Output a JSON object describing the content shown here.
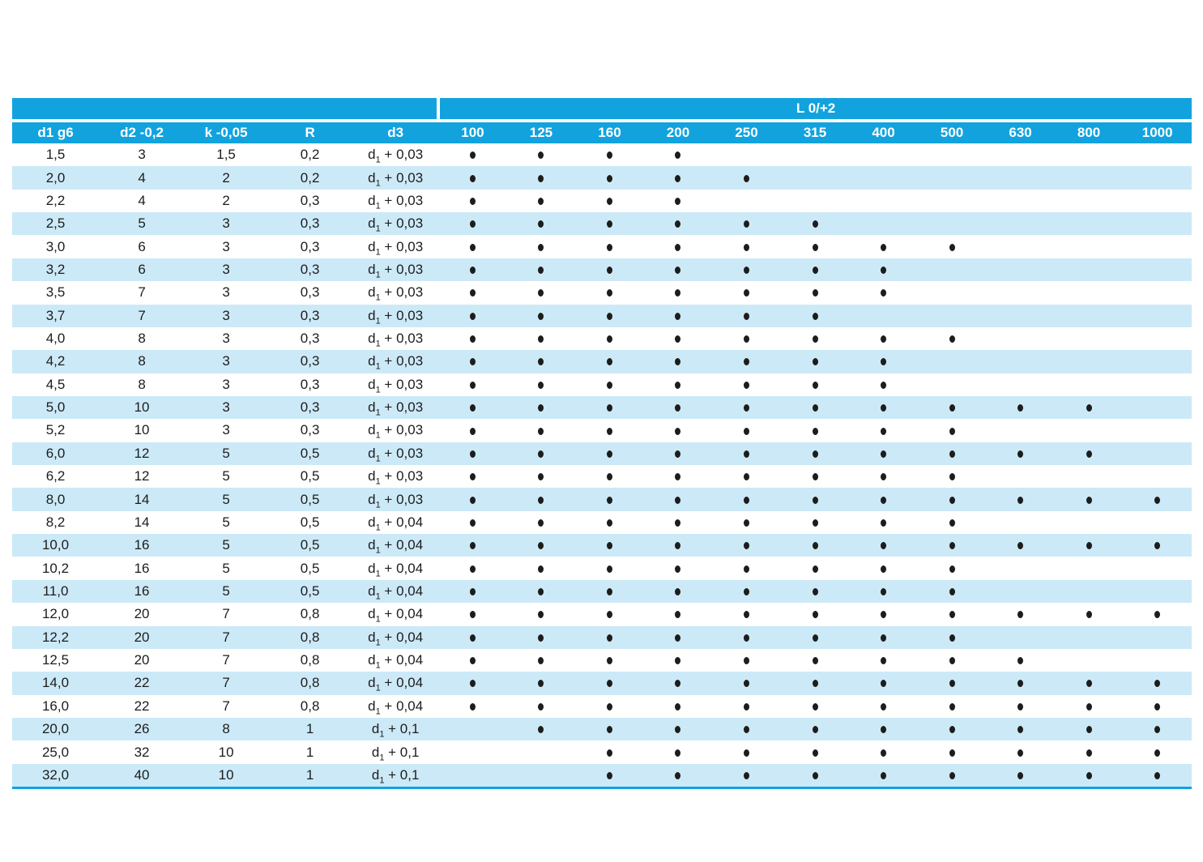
{
  "colors": {
    "header_cyan": "#12A3DE",
    "stripe_blue": "#CCE9F8",
    "text_dark": "#1D1D1B",
    "header_text": "#FFFFFF"
  },
  "table": {
    "group_header": "L 0/+2",
    "left_headers": [
      "d1 g6",
      "d2 -0,2",
      "k -0,05",
      "R",
      "d3"
    ],
    "length_headers": [
      "100",
      "125",
      "160",
      "200",
      "250",
      "315",
      "400",
      "500",
      "630",
      "800",
      "1000"
    ],
    "rows": [
      {
        "d1": "1,5",
        "d2": "3",
        "k": "1,5",
        "r": "0,2",
        "d3": "d1 + 0,03",
        "dots": [
          1,
          1,
          1,
          1,
          0,
          0,
          0,
          0,
          0,
          0,
          0
        ]
      },
      {
        "d1": "2,0",
        "d2": "4",
        "k": "2",
        "r": "0,2",
        "d3": "d1 + 0,03",
        "dots": [
          1,
          1,
          1,
          1,
          1,
          0,
          0,
          0,
          0,
          0,
          0
        ]
      },
      {
        "d1": "2,2",
        "d2": "4",
        "k": "2",
        "r": "0,3",
        "d3": "d1 + 0,03",
        "dots": [
          1,
          1,
          1,
          1,
          0,
          0,
          0,
          0,
          0,
          0,
          0
        ]
      },
      {
        "d1": "2,5",
        "d2": "5",
        "k": "3",
        "r": "0,3",
        "d3": "d1 + 0,03",
        "dots": [
          1,
          1,
          1,
          1,
          1,
          1,
          0,
          0,
          0,
          0,
          0
        ]
      },
      {
        "d1": "3,0",
        "d2": "6",
        "k": "3",
        "r": "0,3",
        "d3": "d1 + 0,03",
        "dots": [
          1,
          1,
          1,
          1,
          1,
          1,
          1,
          1,
          0,
          0,
          0
        ]
      },
      {
        "d1": "3,2",
        "d2": "6",
        "k": "3",
        "r": "0,3",
        "d3": "d1 + 0,03",
        "dots": [
          1,
          1,
          1,
          1,
          1,
          1,
          1,
          0,
          0,
          0,
          0
        ]
      },
      {
        "d1": "3,5",
        "d2": "7",
        "k": "3",
        "r": "0,3",
        "d3": "d1 + 0,03",
        "dots": [
          1,
          1,
          1,
          1,
          1,
          1,
          1,
          0,
          0,
          0,
          0
        ]
      },
      {
        "d1": "3,7",
        "d2": "7",
        "k": "3",
        "r": "0,3",
        "d3": "d1 + 0,03",
        "dots": [
          1,
          1,
          1,
          1,
          1,
          1,
          0,
          0,
          0,
          0,
          0
        ]
      },
      {
        "d1": "4,0",
        "d2": "8",
        "k": "3",
        "r": "0,3",
        "d3": "d1 + 0,03",
        "dots": [
          1,
          1,
          1,
          1,
          1,
          1,
          1,
          1,
          0,
          0,
          0
        ]
      },
      {
        "d1": "4,2",
        "d2": "8",
        "k": "3",
        "r": "0,3",
        "d3": "d1 + 0,03",
        "dots": [
          1,
          1,
          1,
          1,
          1,
          1,
          1,
          0,
          0,
          0,
          0
        ]
      },
      {
        "d1": "4,5",
        "d2": "8",
        "k": "3",
        "r": "0,3",
        "d3": "d1 + 0,03",
        "dots": [
          1,
          1,
          1,
          1,
          1,
          1,
          1,
          0,
          0,
          0,
          0
        ]
      },
      {
        "d1": "5,0",
        "d2": "10",
        "k": "3",
        "r": "0,3",
        "d3": "d1 + 0,03",
        "dots": [
          1,
          1,
          1,
          1,
          1,
          1,
          1,
          1,
          1,
          1,
          0
        ]
      },
      {
        "d1": "5,2",
        "d2": "10",
        "k": "3",
        "r": "0,3",
        "d3": "d1 + 0,03",
        "dots": [
          1,
          1,
          1,
          1,
          1,
          1,
          1,
          1,
          0,
          0,
          0
        ]
      },
      {
        "d1": "6,0",
        "d2": "12",
        "k": "5",
        "r": "0,5",
        "d3": "d1 + 0,03",
        "dots": [
          1,
          1,
          1,
          1,
          1,
          1,
          1,
          1,
          1,
          1,
          0
        ]
      },
      {
        "d1": "6,2",
        "d2": "12",
        "k": "5",
        "r": "0,5",
        "d3": "d1 + 0,03",
        "dots": [
          1,
          1,
          1,
          1,
          1,
          1,
          1,
          1,
          0,
          0,
          0
        ]
      },
      {
        "d1": "8,0",
        "d2": "14",
        "k": "5",
        "r": "0,5",
        "d3": "d1 + 0,03",
        "dots": [
          1,
          1,
          1,
          1,
          1,
          1,
          1,
          1,
          1,
          1,
          1
        ]
      },
      {
        "d1": "8,2",
        "d2": "14",
        "k": "5",
        "r": "0,5",
        "d3": "d1 + 0,04",
        "dots": [
          1,
          1,
          1,
          1,
          1,
          1,
          1,
          1,
          0,
          0,
          0
        ]
      },
      {
        "d1": "10,0",
        "d2": "16",
        "k": "5",
        "r": "0,5",
        "d3": "d1 + 0,04",
        "dots": [
          1,
          1,
          1,
          1,
          1,
          1,
          1,
          1,
          1,
          1,
          1
        ]
      },
      {
        "d1": "10,2",
        "d2": "16",
        "k": "5",
        "r": "0,5",
        "d3": "d1 + 0,04",
        "dots": [
          1,
          1,
          1,
          1,
          1,
          1,
          1,
          1,
          0,
          0,
          0
        ]
      },
      {
        "d1": "11,0",
        "d2": "16",
        "k": "5",
        "r": "0,5",
        "d3": "d1 + 0,04",
        "dots": [
          1,
          1,
          1,
          1,
          1,
          1,
          1,
          1,
          0,
          0,
          0
        ]
      },
      {
        "d1": "12,0",
        "d2": "20",
        "k": "7",
        "r": "0,8",
        "d3": "d1 + 0,04",
        "dots": [
          1,
          1,
          1,
          1,
          1,
          1,
          1,
          1,
          1,
          1,
          1
        ]
      },
      {
        "d1": "12,2",
        "d2": "20",
        "k": "7",
        "r": "0,8",
        "d3": "d1 + 0,04",
        "dots": [
          1,
          1,
          1,
          1,
          1,
          1,
          1,
          1,
          0,
          0,
          0
        ]
      },
      {
        "d1": "12,5",
        "d2": "20",
        "k": "7",
        "r": "0,8",
        "d3": "d1 + 0,04",
        "dots": [
          1,
          1,
          1,
          1,
          1,
          1,
          1,
          1,
          1,
          0,
          0
        ]
      },
      {
        "d1": "14,0",
        "d2": "22",
        "k": "7",
        "r": "0,8",
        "d3": "d1 + 0,04",
        "dots": [
          1,
          1,
          1,
          1,
          1,
          1,
          1,
          1,
          1,
          1,
          1
        ]
      },
      {
        "d1": "16,0",
        "d2": "22",
        "k": "7",
        "r": "0,8",
        "d3": "d1 + 0,04",
        "dots": [
          1,
          1,
          1,
          1,
          1,
          1,
          1,
          1,
          1,
          1,
          1
        ]
      },
      {
        "d1": "20,0",
        "d2": "26",
        "k": "8",
        "r": "1",
        "d3": "d1 + 0,1",
        "dots": [
          0,
          1,
          1,
          1,
          1,
          1,
          1,
          1,
          1,
          1,
          1
        ]
      },
      {
        "d1": "25,0",
        "d2": "32",
        "k": "10",
        "r": "1",
        "d3": "d1 + 0,1",
        "dots": [
          0,
          0,
          1,
          1,
          1,
          1,
          1,
          1,
          1,
          1,
          1
        ]
      },
      {
        "d1": "32,0",
        "d2": "40",
        "k": "10",
        "r": "1",
        "d3": "d1 + 0,1",
        "dots": [
          0,
          0,
          1,
          1,
          1,
          1,
          1,
          1,
          1,
          1,
          1
        ]
      }
    ]
  }
}
